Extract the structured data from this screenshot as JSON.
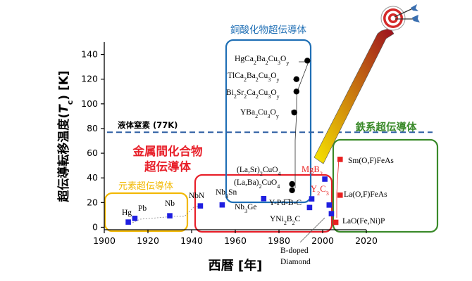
{
  "chart_data": {
    "type": "scatter",
    "xlabel": "西暦 [年]",
    "ylabel_parts": {
      "before": "超伝導転移温度(",
      "italic": "T",
      "sub": "c",
      "after": ") [K]"
    },
    "xlim": [
      1900,
      2020
    ],
    "ylim": [
      -2,
      150
    ],
    "xticks": [
      "1900",
      "1920",
      "1940",
      "1960",
      "1980",
      "2000",
      "2020"
    ],
    "yticks": [
      "0",
      "20",
      "40",
      "60",
      "80",
      "100",
      "120",
      "140"
    ],
    "reference_line": {
      "label": "液体窒素 (77K)",
      "y": 77,
      "color": "#2e5fa3"
    },
    "groups": {
      "elemental": {
        "label": "元素超伝導体",
        "color": "#f2b800"
      },
      "intermetallic": {
        "label_line1": "金属間化合物",
        "label_line2": "超伝導体",
        "color": "#e8202a"
      },
      "cuprate": {
        "label": "銅酸化物超伝導体",
        "color": "#1f6fb5"
      },
      "iron": {
        "label": "鉄系超伝導体",
        "color": "#3a8a2a"
      }
    },
    "series": [
      {
        "group": "blue",
        "marker": "square",
        "color": "#1f1fe0",
        "points": [
          {
            "x": 1911,
            "y": 4.2
          },
          {
            "x": 1914,
            "y": 7.2
          },
          {
            "x": 1930,
            "y": 9.3
          },
          {
            "x": 1944,
            "y": 17.3
          },
          {
            "x": 1954,
            "y": 18.1
          },
          {
            "x": 1973,
            "y": 23.2
          },
          {
            "x": 1994,
            "y": 16
          },
          {
            "x": 1995,
            "y": 23
          },
          {
            "x": 2001,
            "y": 39
          },
          {
            "x": 2003,
            "y": 18
          },
          {
            "x": 2004,
            "y": 11
          }
        ]
      },
      {
        "group": "red",
        "marker": "square",
        "color": "#e82020",
        "points": [
          {
            "x": 2006,
            "y": 4
          },
          {
            "x": 2008,
            "y": 26
          },
          {
            "x": 2008,
            "y": 55
          }
        ]
      },
      {
        "group": "black",
        "marker": "circle",
        "color": "#000000",
        "points": [
          {
            "x": 1986,
            "y": 30
          },
          {
            "x": 1986,
            "y": 35
          },
          {
            "x": 1987,
            "y": 93
          },
          {
            "x": 1988,
            "y": 110
          },
          {
            "x": 1988,
            "y": 120
          },
          {
            "x": 1993,
            "y": 135
          }
        ]
      }
    ],
    "labels": {
      "hg": "Hg",
      "pb": "Pb",
      "nb": "Nb",
      "nbn": "NbN",
      "nb3sn": {
        "main": "Nb",
        "sub": "3",
        "tail": "Sn"
      },
      "nb3ge": {
        "main": "Nb",
        "sub": "3",
        "tail": "Ge"
      },
      "ypdbc": "Y-Pd-B-C",
      "yni2b2c": {
        "p1": "YNi",
        "s1": "2",
        "p2": "B",
        "s2": "2",
        "p3": "C"
      },
      "mgb2": {
        "main": "MgB",
        "sub": "2"
      },
      "y2c3": {
        "p1": "Y",
        "s1": "2",
        "p2": "C",
        "s2": "3"
      },
      "bdoped_1": "B-doped",
      "bdoped_2": "Diamond",
      "lasrcuo": {
        "p1": "(La,Sr)",
        "s1": "2",
        "p2": "CuO",
        "s2": "4"
      },
      "labacuo": {
        "p1": "(La,Ba)",
        "s1": "2",
        "p2": "CuO",
        "s2": "4"
      },
      "ybco": {
        "p1": "YBa",
        "s1": "2",
        "p2": "Cu",
        "s2": "3",
        "p3": "O",
        "s3": "y"
      },
      "bscco": {
        "p1": "Bi",
        "s1": "2",
        "p2": "Sr",
        "s2": "2",
        "p3": "Ca",
        "s3": "2",
        "p4": "Cu",
        "s4": "3",
        "p5": "O",
        "s5": "y"
      },
      "tbcco": {
        "p1": "TlCa",
        "s1": "2",
        "p2": "Ba",
        "s2": "2",
        "p3": "Cu",
        "s3": "3",
        "p4": "O",
        "s4": "y"
      },
      "hbcco": {
        "p1": "HgCa",
        "s1": "2",
        "p2": "Ba",
        "s2": "2",
        "p3": "Cu",
        "s3": "3",
        "p4": "O",
        "s4": "y"
      },
      "smofeas": "Sm(O,F)FeAs",
      "laofeas": "La(O,F)FeAs",
      "laofenip": "LaO(Fe,Ni)P"
    },
    "colors": {
      "axis": "#000000",
      "arrow_start": "#f7e600",
      "arrow_end": "#9c0f1f",
      "target_red": "#d42a2a",
      "dart_blue": "#3a6fb0"
    }
  }
}
